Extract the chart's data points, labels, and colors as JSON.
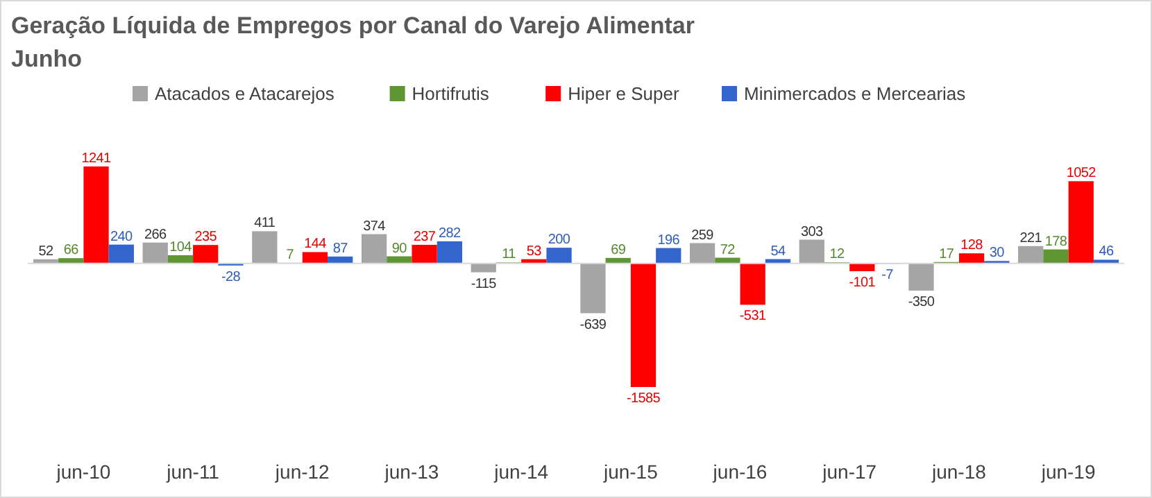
{
  "chart_data": {
    "type": "bar",
    "title": "Geração Líquida de Empregos por Canal do Varejo Alimentar",
    "subtitle": "Junho",
    "categories": [
      "jun-10",
      "jun-11",
      "jun-12",
      "jun-13",
      "jun-14",
      "jun-15",
      "jun-16",
      "jun-17",
      "jun-18",
      "jun-19"
    ],
    "series": [
      {
        "name": "Atacados e Atacarejos",
        "color": "#a5a5a5",
        "values": [
          52,
          266,
          411,
          374,
          -115,
          -639,
          259,
          303,
          -350,
          221
        ]
      },
      {
        "name": "Hortifrutis",
        "color": "#5e9732",
        "values": [
          66,
          104,
          7,
          90,
          11,
          69,
          72,
          12,
          17,
          178
        ]
      },
      {
        "name": "Hiper e Super",
        "color": "#ff0000",
        "values": [
          1241,
          235,
          144,
          237,
          53,
          -1585,
          -531,
          -101,
          128,
          1052
        ]
      },
      {
        "name": "Minimercados e Mercearias",
        "color": "#3366cc",
        "values": [
          240,
          -28,
          87,
          282,
          200,
          196,
          54,
          -7,
          30,
          46
        ]
      }
    ],
    "data_labels": true,
    "legend": "top",
    "grid": false
  }
}
